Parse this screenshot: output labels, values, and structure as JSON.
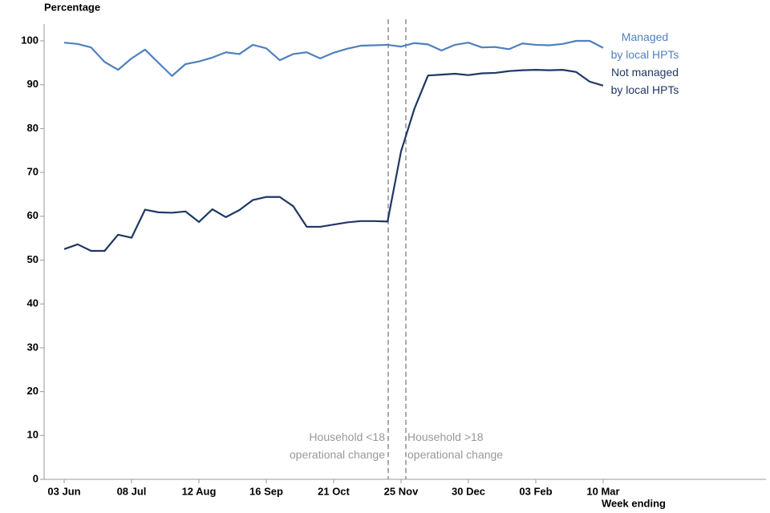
{
  "chart_data": {
    "type": "line",
    "y_label": "Percentage",
    "x_label": "Week ending",
    "categories": [
      "03 Jun",
      null,
      null,
      null,
      null,
      "08 Jul",
      null,
      null,
      null,
      null,
      "12 Aug",
      null,
      null,
      null,
      null,
      "16 Sep",
      null,
      null,
      null,
      null,
      "21 Oct",
      null,
      null,
      null,
      null,
      "25 Nov",
      null,
      null,
      null,
      null,
      "30 Dec",
      null,
      null,
      null,
      null,
      "03 Feb",
      null,
      null,
      null,
      null,
      "10 Mar"
    ],
    "series": [
      {
        "name": "Managed\nby local HPTs",
        "color": "#4f81bd",
        "values": [
          99.6,
          99.3,
          98.5,
          95.2,
          93.4,
          96,
          98,
          95,
          92,
          94.7,
          95.3,
          96.2,
          97.4,
          97,
          99.1,
          98.3,
          95.6,
          97,
          97.4,
          96,
          97.3,
          98.2,
          98.9,
          99,
          99.1,
          98.7,
          99.5,
          99.2,
          97.8,
          99.1,
          99.6,
          98.5,
          98.6,
          98.1,
          99.4,
          99.1,
          99,
          99.3,
          100,
          100,
          98.4
        ]
      },
      {
        "name": "Not managed\nby local HPTs",
        "color": "#1f3864",
        "values": [
          52.5,
          53.6,
          52.1,
          52.1,
          55.8,
          55.1,
          61.5,
          60.9,
          60.8,
          61.1,
          58.7,
          61.6,
          59.8,
          61.4,
          63.7,
          64.4,
          64.4,
          62.3,
          57.6,
          57.6,
          58.1,
          58.6,
          58.9,
          58.9,
          58.8,
          74.8,
          84.6,
          92.1,
          92.3,
          92.5,
          92.2,
          92.6,
          92.7,
          93.1,
          93.3,
          93.4,
          93.3,
          93.4,
          92.9,
          90.7,
          89.8
        ]
      }
    ],
    "annotations": [
      "Household <18\noperational change",
      "Household >18\noperational change"
    ],
    "ylim": [
      0,
      100
    ],
    "yticks": [
      0,
      10,
      20,
      30,
      40,
      50,
      60,
      70,
      80,
      90,
      100
    ],
    "grid": false
  }
}
